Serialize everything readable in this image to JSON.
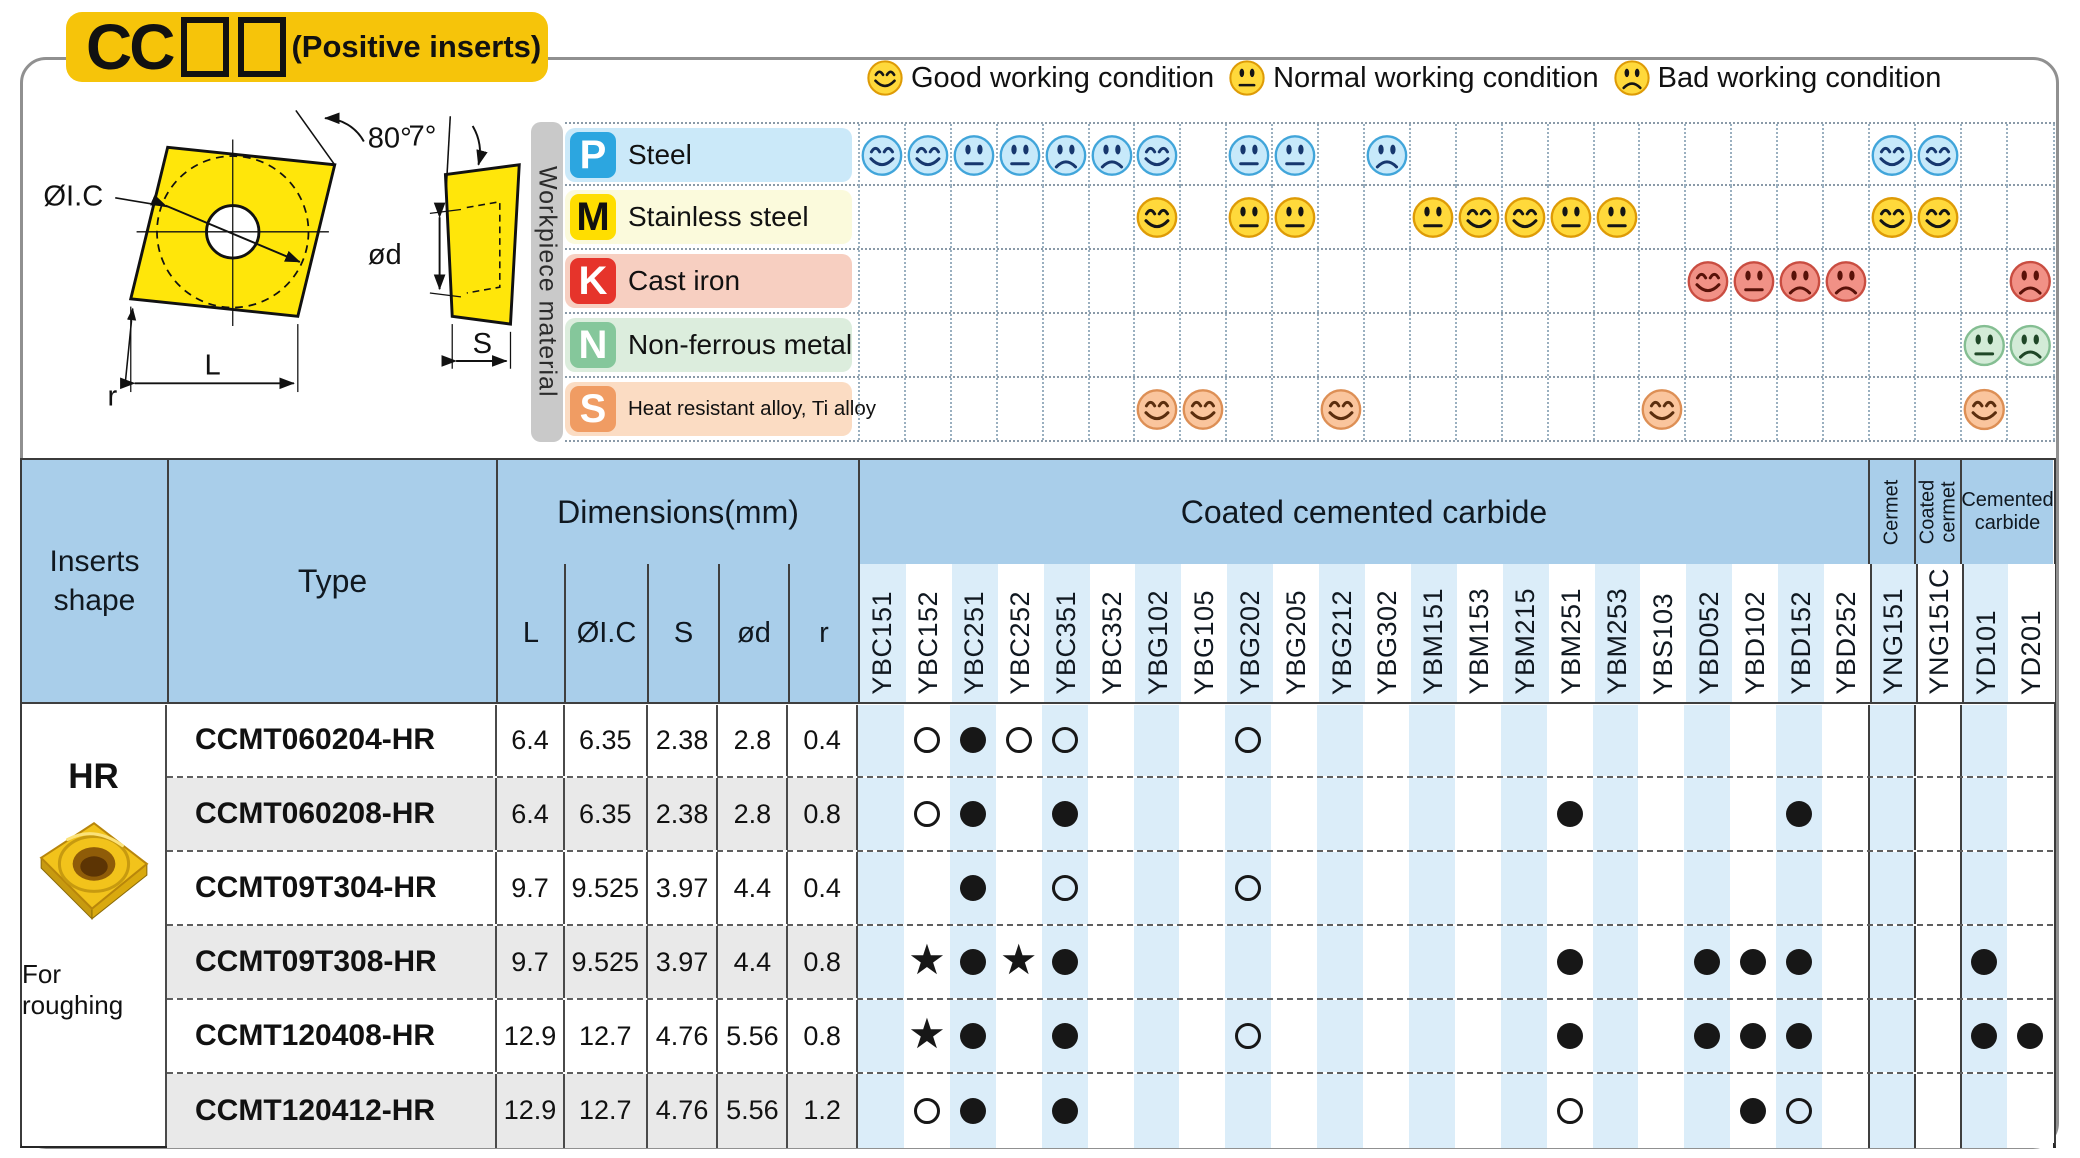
{
  "title": {
    "code": "CC",
    "suffix": "(Positive inserts)",
    "accent": "#F6C40A"
  },
  "legend": {
    "items": [
      {
        "type": "good",
        "label": "Good working condition"
      },
      {
        "type": "normal",
        "label": "Normal working condition"
      },
      {
        "type": "bad",
        "label": "Bad working condition"
      }
    ]
  },
  "diagram": {
    "labels": {
      "angle_main": "80°",
      "angle_clearance": "7°",
      "inscribed": "ØI.C",
      "hole": "ød",
      "radius": "r",
      "length": "L",
      "thickness": "S"
    }
  },
  "workpiece": {
    "axis_label": "Workpiece material",
    "materials": [
      {
        "letter": "P",
        "name": "Steel",
        "palette": "blue",
        "band": "#CBE9F9",
        "badge": "#2CA6E0",
        "letter_color": "#FFFFFF",
        "ratings": {
          "YBC151": "good",
          "YBC152": "good",
          "YBC251": "normal",
          "YBC252": "normal",
          "YBC351": "bad",
          "YBC352": "bad",
          "YBG102": "good",
          "YBG202": "normal",
          "YBG205": "normal",
          "YBG302": "bad",
          "YNG151": "good",
          "YNG151C": "good"
        }
      },
      {
        "letter": "M",
        "name": "Stainless steel",
        "palette": "yellow",
        "band": "#FBFADC",
        "badge": "#FFDE00",
        "letter_color": "#111111",
        "ratings": {
          "YBG102": "good",
          "YBG202": "normal",
          "YBG205": "normal",
          "YBM151": "normal",
          "YBM153": "good",
          "YBM215": "good",
          "YBM251": "normal",
          "YBM253": "normal",
          "YNG151": "good",
          "YNG151C": "good"
        }
      },
      {
        "letter": "K",
        "name": "Cast iron",
        "palette": "red",
        "band": "#F7CFC1",
        "badge": "#E6342B",
        "letter_color": "#FFFFFF",
        "ratings": {
          "YBD052": "good",
          "YBD102": "normal",
          "YBD152": "bad",
          "YBD252": "bad",
          "YD201": "bad"
        }
      },
      {
        "letter": "N",
        "name": "Non-ferrous metal",
        "palette": "green",
        "band": "#DCEDDD",
        "badge": "#85C79B",
        "letter_color": "#FFFFFF",
        "ratings": {
          "YD101": "normal",
          "YD201": "bad"
        }
      },
      {
        "letter": "S",
        "name": "Heat resistant alloy, Ti alloy",
        "palette": "orange",
        "band": "#FBDCC3",
        "badge": "#F09C63",
        "letter_color": "#FFFFFF",
        "ratings": {
          "YBG102": "good",
          "YBG105": "good",
          "YBG212": "good",
          "YBS103": "good",
          "YD101": "good"
        }
      }
    ]
  },
  "table": {
    "headers": {
      "inserts_shape": "Inserts shape",
      "type": "Type",
      "dimensions": "Dimensions(mm)",
      "dim_cols": [
        "L",
        "ØI.C",
        "S",
        "ød",
        "r"
      ],
      "coated": "Coated cemented carbide",
      "cermet": "Cermet",
      "coated_cermet": "Coated cermet",
      "cemented_carbide": "Cemented carbide"
    },
    "grades": [
      "YBC151",
      "YBC152",
      "YBC251",
      "YBC252",
      "YBC351",
      "YBC352",
      "YBG102",
      "YBG105",
      "YBG202",
      "YBG205",
      "YBG212",
      "YBG302",
      "YBM151",
      "YBM153",
      "YBM215",
      "YBM251",
      "YBM253",
      "YBS103",
      "YBD052",
      "YBD102",
      "YBD152",
      "YBD252",
      "YNG151",
      "YNG151C",
      "YD101",
      "YD201"
    ],
    "shape": {
      "code": "HR",
      "note": "For roughing"
    },
    "marks_legend": {
      "dot": "●",
      "circle": "○",
      "star": "★"
    },
    "rows": [
      {
        "type": "CCMT060204-HR",
        "dims": [
          "6.4",
          "6.35",
          "2.38",
          "2.8",
          "0.4"
        ],
        "marks": {
          "YBC152": "circle",
          "YBC251": "dot",
          "YBC252": "circle",
          "YBC351": "circle",
          "YBG202": "circle"
        }
      },
      {
        "type": "CCMT060208-HR",
        "dims": [
          "6.4",
          "6.35",
          "2.38",
          "2.8",
          "0.8"
        ],
        "marks": {
          "YBC152": "circle",
          "YBC251": "dot",
          "YBC351": "dot",
          "YBM251": "dot",
          "YBD152": "dot"
        }
      },
      {
        "type": "CCMT09T304-HR",
        "dims": [
          "9.7",
          "9.525",
          "3.97",
          "4.4",
          "0.4"
        ],
        "marks": {
          "YBC251": "dot",
          "YBC351": "circle",
          "YBG202": "circle"
        }
      },
      {
        "type": "CCMT09T308-HR",
        "dims": [
          "9.7",
          "9.525",
          "3.97",
          "4.4",
          "0.8"
        ],
        "marks": {
          "YBC152": "star",
          "YBC251": "dot",
          "YBC252": "star",
          "YBC351": "dot",
          "YBM251": "dot",
          "YBD052": "dot",
          "YBD102": "dot",
          "YBD152": "dot",
          "YD101": "dot"
        }
      },
      {
        "type": "CCMT120408-HR",
        "dims": [
          "12.9",
          "12.7",
          "4.76",
          "5.56",
          "0.8"
        ],
        "marks": {
          "YBC152": "star",
          "YBC251": "dot",
          "YBC351": "dot",
          "YBG202": "circle",
          "YBM251": "dot",
          "YBD052": "dot",
          "YBD102": "dot",
          "YBD152": "dot",
          "YD101": "dot",
          "YD201": "dot"
        }
      },
      {
        "type": "CCMT120412-HR",
        "dims": [
          "12.9",
          "12.7",
          "4.76",
          "5.56",
          "1.2"
        ],
        "marks": {
          "YBC152": "circle",
          "YBC251": "dot",
          "YBC351": "dot",
          "YBM251": "circle",
          "YBD102": "dot",
          "YBD152": "circle"
        }
      }
    ]
  },
  "colors": {
    "header_blue": "#A9CEEA",
    "stripe_blue": "#DBEDF9",
    "row_alt_gray": "#E9E9E9",
    "palettes": {
      "blue": {
        "face": "#C7E9FA",
        "edge": "#41A5DA",
        "feat": "#17376E"
      },
      "yellow": {
        "face": "#FFD93B",
        "edge": "#DE9B06",
        "feat": "#151515"
      },
      "red": {
        "face": "#F19186",
        "edge": "#C94D41",
        "feat": "#591209"
      },
      "green": {
        "face": "#D3EBD7",
        "edge": "#84BE92",
        "feat": "#1F4727"
      },
      "orange": {
        "face": "#FAC59D",
        "edge": "#DD8F55",
        "feat": "#5B2E0E"
      }
    }
  }
}
